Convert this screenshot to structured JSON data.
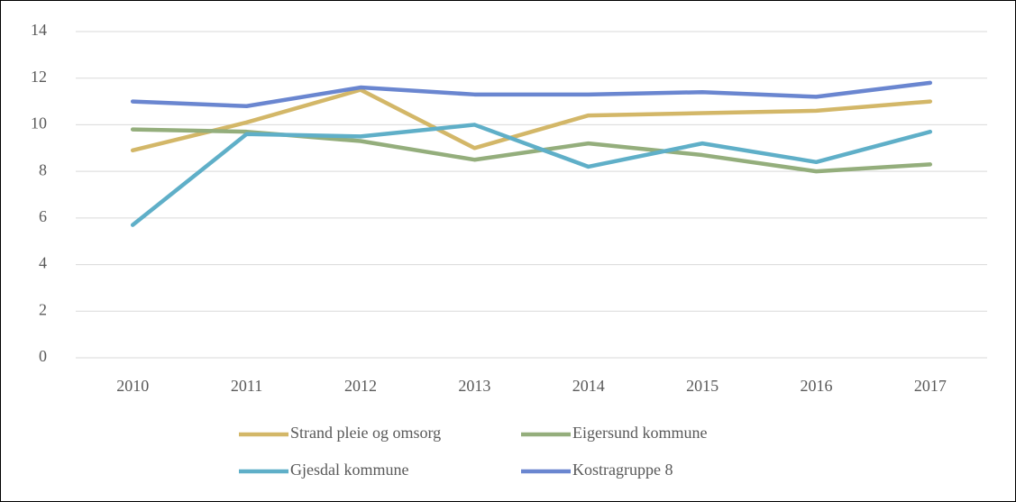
{
  "chart_data": {
    "type": "line",
    "categories": [
      "2010",
      "2011",
      "2012",
      "2013",
      "2014",
      "2015",
      "2016",
      "2017"
    ],
    "series": [
      {
        "name": "Strand pleie og omsorg",
        "color": "#d3b768",
        "values": [
          8.9,
          10.1,
          11.5,
          9.0,
          10.4,
          10.5,
          10.6,
          11.0
        ]
      },
      {
        "name": "Eigersund kommune",
        "color": "#94ae7c",
        "values": [
          9.8,
          9.7,
          9.3,
          8.5,
          9.2,
          8.7,
          8.0,
          8.3
        ]
      },
      {
        "name": "Gjesdal kommune",
        "color": "#5fafc8",
        "values": [
          5.7,
          9.6,
          9.5,
          10.0,
          8.2,
          9.2,
          8.4,
          9.7
        ]
      },
      {
        "name": "Kostragruppe 8",
        "color": "#6a86d0",
        "values": [
          11.0,
          10.8,
          11.6,
          11.3,
          11.3,
          11.4,
          11.2,
          11.8
        ]
      }
    ],
    "ylim": [
      0,
      14
    ],
    "yticks": [
      0,
      2,
      4,
      6,
      8,
      10,
      12,
      14
    ],
    "grid": true,
    "legend": "bottom"
  }
}
